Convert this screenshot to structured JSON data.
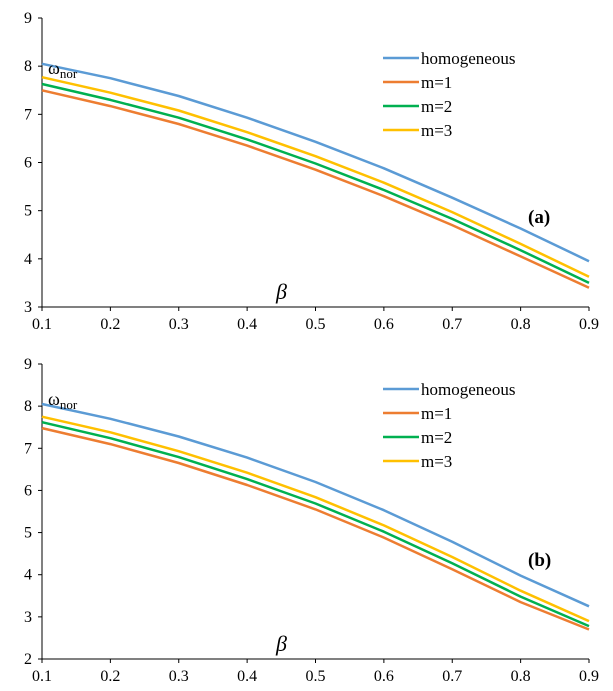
{
  "chart_data": [
    {
      "type": "line",
      "panel_label": "(a)",
      "xlabel": "β",
      "ylabel_main": "ω",
      "ylabel_sub": "nor",
      "xlim": [
        0.1,
        0.9
      ],
      "ylim": [
        3,
        9
      ],
      "x_ticks": [
        "0.1",
        "0.2",
        "0.3",
        "0.4",
        "0.5",
        "0.6",
        "0.7",
        "0.8",
        "0.9"
      ],
      "y_ticks": [
        "3",
        "4",
        "5",
        "6",
        "7",
        "8",
        "9"
      ],
      "legend_position": "top-right",
      "x": [
        0.1,
        0.2,
        0.3,
        0.4,
        0.5,
        0.6,
        0.7,
        0.8,
        0.9
      ],
      "series": [
        {
          "name": "homogeneous",
          "color": "#5b9bd5",
          "values": [
            8.05,
            7.75,
            7.38,
            6.93,
            6.43,
            5.88,
            5.27,
            4.63,
            3.95
          ]
        },
        {
          "name": "m=1",
          "color": "#ed7d31",
          "values": [
            7.5,
            7.17,
            6.8,
            6.35,
            5.85,
            5.3,
            4.7,
            4.05,
            3.4
          ]
        },
        {
          "name": "m=2",
          "color": "#00b050",
          "values": [
            7.63,
            7.3,
            6.93,
            6.48,
            5.98,
            5.43,
            4.83,
            4.18,
            3.5
          ]
        },
        {
          "name": "m=3",
          "color": "#ffc000",
          "values": [
            7.77,
            7.45,
            7.08,
            6.63,
            6.13,
            5.58,
            4.97,
            4.31,
            3.63
          ]
        }
      ]
    },
    {
      "type": "line",
      "panel_label": "(b)",
      "xlabel": "β",
      "ylabel_main": "ω",
      "ylabel_sub": "nor",
      "xlim": [
        0.1,
        0.9
      ],
      "ylim": [
        2,
        9
      ],
      "x_ticks": [
        "0.1",
        "0.2",
        "0.3",
        "0.4",
        "0.5",
        "0.6",
        "0.7",
        "0.8",
        "0.9"
      ],
      "y_ticks": [
        "2",
        "3",
        "4",
        "5",
        "6",
        "7",
        "8",
        "9"
      ],
      "legend_position": "top-right",
      "x": [
        0.1,
        0.2,
        0.3,
        0.4,
        0.5,
        0.6,
        0.7,
        0.8,
        0.9
      ],
      "series": [
        {
          "name": "homogeneous",
          "color": "#5b9bd5",
          "values": [
            8.05,
            7.7,
            7.28,
            6.78,
            6.2,
            5.53,
            4.78,
            3.98,
            3.25
          ]
        },
        {
          "name": "m=1",
          "color": "#ed7d31",
          "values": [
            7.48,
            7.1,
            6.65,
            6.13,
            5.55,
            4.88,
            4.13,
            3.35,
            2.7
          ]
        },
        {
          "name": "m=2",
          "color": "#00b050",
          "values": [
            7.62,
            7.24,
            6.79,
            6.27,
            5.69,
            5.02,
            4.27,
            3.48,
            2.78
          ]
        },
        {
          "name": "m=3",
          "color": "#ffc000",
          "values": [
            7.75,
            7.38,
            6.93,
            6.42,
            5.84,
            5.17,
            4.42,
            3.62,
            2.9
          ]
        }
      ]
    }
  ]
}
